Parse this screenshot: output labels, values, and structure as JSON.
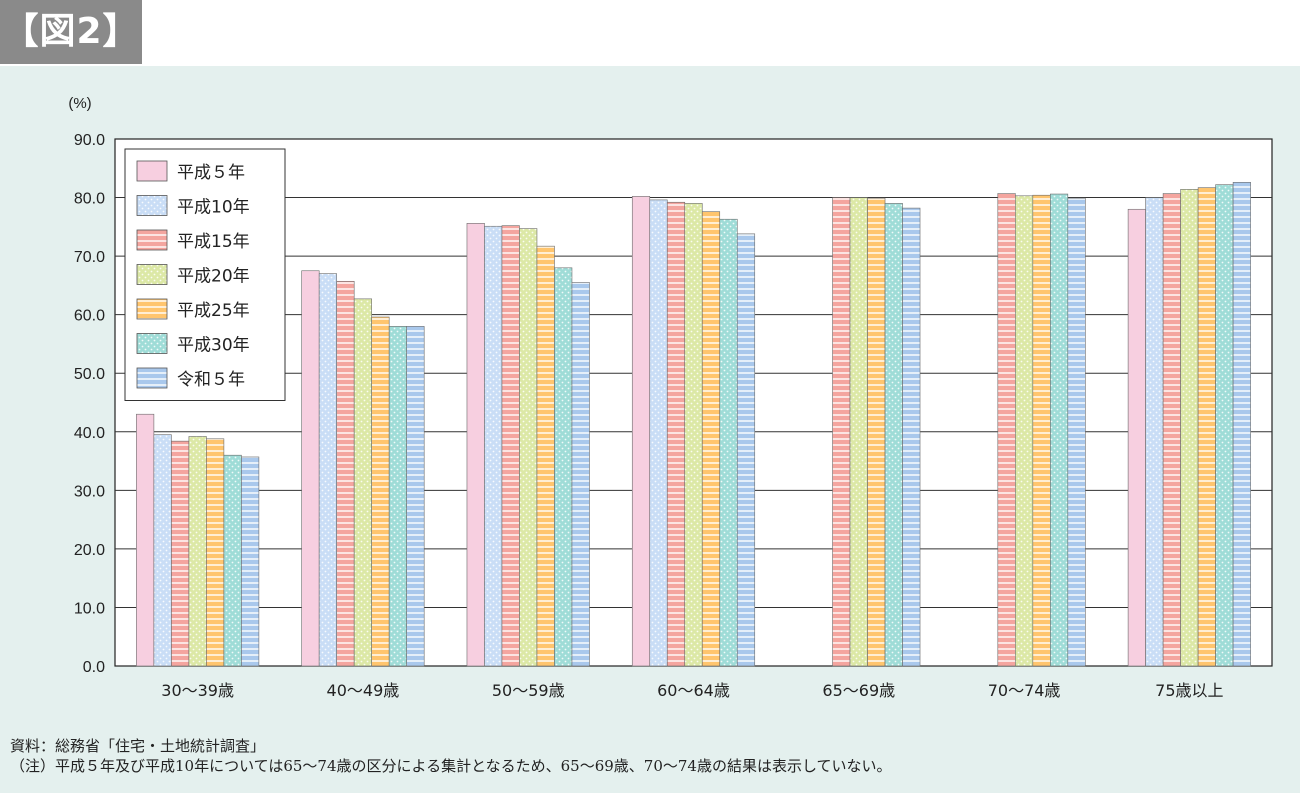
{
  "figure_label": "【図2】",
  "colors": {
    "panel_bg": "#e4f0ee",
    "series": [
      "#f7cfe0",
      "#c9ddf6",
      "#f4a59f",
      "#dce8a6",
      "#ffc56e",
      "#9fdcd7",
      "#a9c8ec"
    ]
  },
  "chart_data": {
    "type": "bar",
    "title": "",
    "xlabel": "",
    "ylabel": "(%)",
    "ylim": [
      0,
      90
    ],
    "yticks": [
      "0.0",
      "10.0",
      "20.0",
      "30.0",
      "40.0",
      "50.0",
      "60.0",
      "70.0",
      "80.0",
      "90.0"
    ],
    "grid": true,
    "legend_position": "top-left",
    "categories": [
      "30～39歳",
      "40～49歳",
      "50～59歳",
      "60～64歳",
      "65～69歳",
      "70～74歳",
      "75歳以上"
    ],
    "series": [
      {
        "name": "平成５年",
        "values": [
          43.0,
          67.5,
          75.6,
          80.2,
          null,
          null,
          78.0
        ]
      },
      {
        "name": "平成10年",
        "values": [
          39.5,
          67.0,
          75.1,
          79.6,
          null,
          null,
          80.0
        ]
      },
      {
        "name": "平成15年",
        "values": [
          38.4,
          65.7,
          75.2,
          79.2,
          80.0,
          80.7,
          80.7
        ]
      },
      {
        "name": "平成20年",
        "values": [
          39.2,
          62.7,
          74.7,
          79.0,
          80.0,
          80.3,
          81.4
        ]
      },
      {
        "name": "平成25年",
        "values": [
          38.8,
          59.6,
          71.7,
          77.6,
          79.9,
          80.4,
          81.7
        ]
      },
      {
        "name": "平成30年",
        "values": [
          36.0,
          58.0,
          68.0,
          76.3,
          79.0,
          80.6,
          82.2
        ]
      },
      {
        "name": "令和５年",
        "values": [
          35.7,
          58.0,
          65.5,
          73.8,
          78.2,
          79.9,
          82.6
        ]
      }
    ]
  },
  "notes": {
    "source": "資料：総務省「住宅・土地統計調査」",
    "note": "（注）平成５年及び平成10年については65～74歳の区分による集計となるため、65～69歳、70～74歳の結果は表示していない。"
  }
}
